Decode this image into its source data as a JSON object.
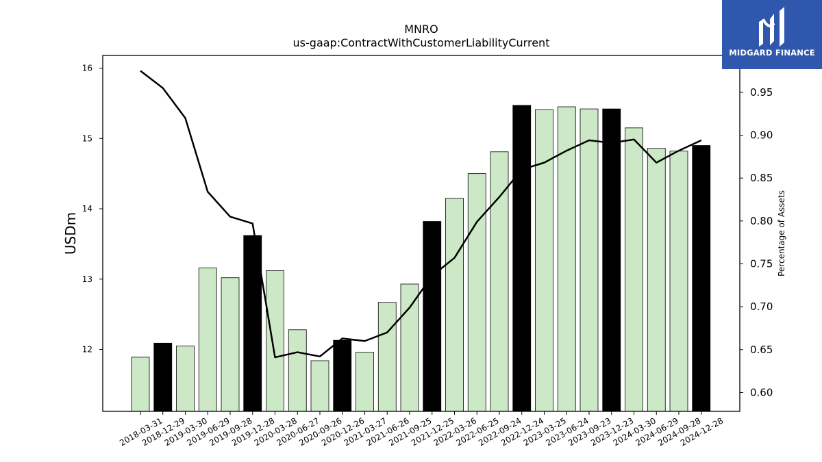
{
  "chart_data": {
    "type": "bar",
    "title": "MNRO",
    "subtitle": "us-gaap:ContractWithCustomerLiabilityCurrent",
    "ylabel": "USDm",
    "y2label": "Percentage of Assets",
    "categories": [
      "2018-03-31",
      "2018-12-29",
      "2019-03-30",
      "2019-06-29",
      "2019-09-28",
      "2019-12-28",
      "2020-03-28",
      "2020-06-27",
      "2020-09-26",
      "2020-12-26",
      "2021-03-27",
      "2021-06-26",
      "2021-09-25",
      "2021-12-25",
      "2022-03-26",
      "2022-06-25",
      "2022-09-24",
      "2022-12-24",
      "2023-03-25",
      "2023-06-24",
      "2023-09-23",
      "2023-12-23",
      "2024-03-30",
      "2024-06-29",
      "2024-09-28",
      "2024-12-28"
    ],
    "highlighted": [
      false,
      true,
      false,
      false,
      false,
      true,
      false,
      false,
      false,
      true,
      false,
      false,
      false,
      true,
      false,
      false,
      false,
      true,
      false,
      false,
      false,
      true,
      false,
      false,
      false,
      true
    ],
    "series": [
      {
        "axis": "left",
        "kind": "bar",
        "values": [
          11.89,
          12.09,
          12.05,
          13.16,
          13.02,
          13.62,
          13.12,
          12.28,
          11.84,
          12.13,
          11.96,
          12.67,
          12.93,
          13.82,
          14.15,
          14.5,
          14.81,
          15.47,
          15.41,
          15.45,
          15.42,
          15.42,
          15.15,
          14.86,
          14.82,
          14.9
        ]
      },
      {
        "axis": "right",
        "kind": "line",
        "values": [
          0.975,
          0.955,
          0.92,
          0.834,
          0.805,
          0.797,
          0.641,
          0.647,
          0.642,
          0.663,
          0.66,
          0.67,
          0.699,
          0.736,
          0.757,
          0.799,
          0.828,
          0.86,
          0.868,
          0.882,
          0.894,
          0.891,
          0.895,
          0.868,
          0.882,
          0.894
        ]
      }
    ],
    "ylim": [
      11.12,
      16.18
    ],
    "y2lim": [
      0.578,
      0.993
    ],
    "yticks": [
      12,
      13,
      14,
      15,
      16
    ],
    "y2ticks": [
      0.6,
      0.65,
      0.7,
      0.75,
      0.8,
      0.85,
      0.9,
      0.95
    ],
    "colors": {
      "bar": "#cce8c6",
      "bar_highlight": "#000000",
      "line": "#000000",
      "edge": "#000000"
    },
    "grid": false,
    "legend": "none"
  },
  "logo": {
    "text": "MIDGARD FINANCE",
    "bg": "#2f57ad"
  }
}
